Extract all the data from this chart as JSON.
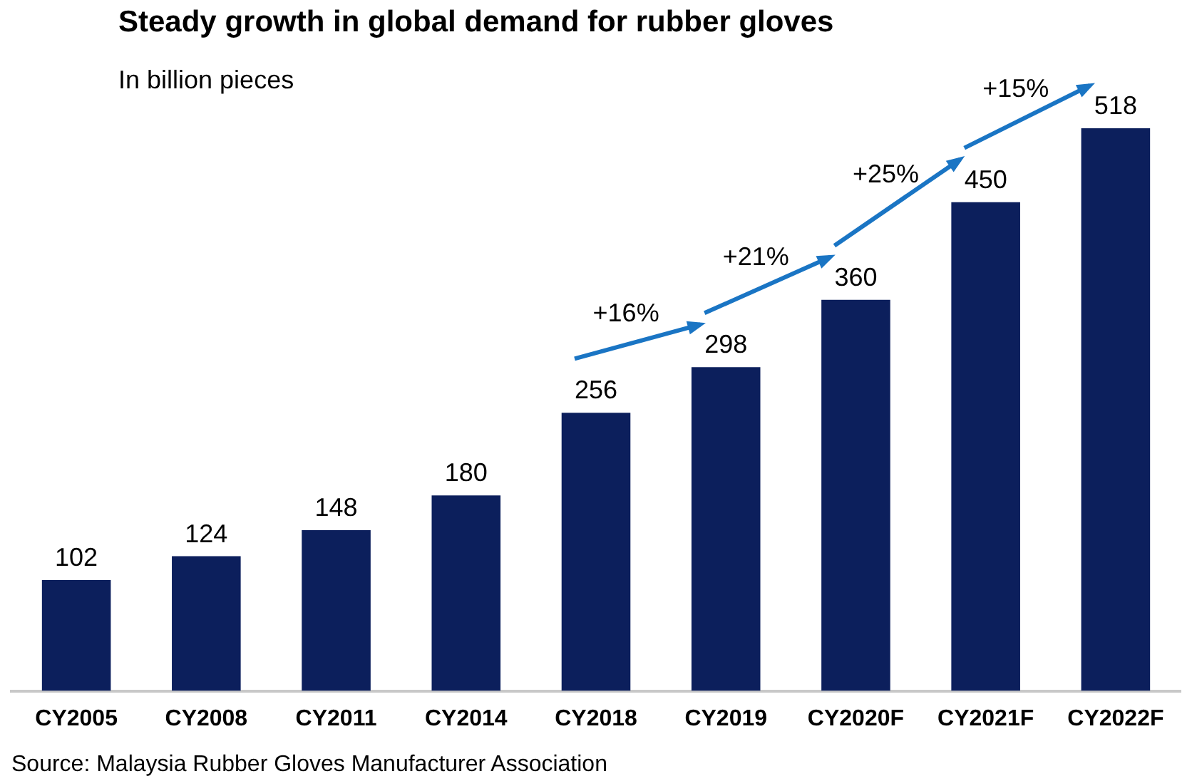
{
  "chart_data": {
    "type": "bar",
    "title": "Steady growth in global demand for rubber gloves",
    "subtitle": "In billion pieces",
    "categories": [
      "CY2005",
      "CY2008",
      "CY2011",
      "CY2014",
      "CY2018",
      "CY2019",
      "CY2020F",
      "CY2021F",
      "CY2022F"
    ],
    "values": [
      102,
      124,
      148,
      180,
      256,
      298,
      360,
      450,
      518
    ],
    "color": "#0c1f5c",
    "data_labels": true,
    "grid": false,
    "legend": false,
    "annotations": [
      "+16%",
      "+21%",
      "+25%",
      "+15%",
      "Source: Malaysia Rubber Gloves Manufacturer Association"
    ]
  }
}
